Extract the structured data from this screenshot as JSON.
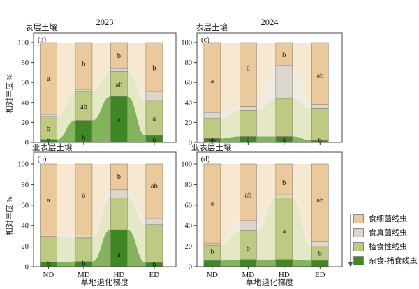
{
  "headers": {
    "year_left": "2023",
    "year_right": "2024",
    "soil_top_left": "表层土壤",
    "soil_top_right": "表层土壤",
    "soil_bottom_left": "亚表层土壤",
    "soil_bottom_right": "亚表层土壤"
  },
  "axes": {
    "ylabel": "相对丰度 %",
    "xlabel_left": "草地退化梯度",
    "xlabel_right": "草地退化梯度"
  },
  "chart_data": {
    "type": "bar",
    "stacked": true,
    "unit": "%",
    "categories": [
      "ND",
      "MD",
      "HD",
      "ED"
    ],
    "series_names": [
      "杂食-捕食线虫",
      "植食性线虫",
      "食真菌线虫",
      "食细菌线虫"
    ],
    "ylim": [
      0,
      100
    ],
    "y_ticks": [
      0,
      20,
      40,
      60,
      80,
      100
    ],
    "grid": false,
    "background_style": "smoothed stacked area tint behind bars",
    "panels": [
      {
        "id": "a",
        "tag": "(a)",
        "row": "表层土壤",
        "col": "2023",
        "stacks": [
          [
            3,
            23,
            2,
            72
          ],
          [
            22,
            29,
            2,
            47
          ],
          [
            46,
            25,
            3,
            26
          ],
          [
            7,
            35,
            9,
            49
          ]
        ],
        "letters": [
          {
            "bar": 0,
            "text": "b",
            "y": 2.5
          },
          {
            "bar": 0,
            "text": "b",
            "y": 14.5
          },
          {
            "bar": 0,
            "text": "a",
            "y": 64
          },
          {
            "bar": 1,
            "text": "b",
            "y": 5
          },
          {
            "bar": 1,
            "text": "ab",
            "y": 36
          },
          {
            "bar": 1,
            "text": "b",
            "y": 79
          },
          {
            "bar": 2,
            "text": "a",
            "y": 23
          },
          {
            "bar": 2,
            "text": "ab",
            "y": 58
          },
          {
            "bar": 2,
            "text": "b",
            "y": 87
          },
          {
            "bar": 3,
            "text": "b",
            "y": 2.5
          },
          {
            "bar": 3,
            "text": "a",
            "y": 24
          },
          {
            "bar": 3,
            "text": "b",
            "y": 75
          }
        ]
      },
      {
        "id": "b",
        "tag": "(b)",
        "row": "亚表层土壤",
        "col": "2023",
        "stacks": [
          [
            4.5,
            25,
            1.5,
            69
          ],
          [
            5,
            23,
            3,
            69
          ],
          [
            36,
            31,
            8,
            25
          ],
          [
            4,
            37,
            6,
            53
          ]
        ],
        "letters": [
          {
            "bar": 0,
            "text": "b",
            "y": 3
          },
          {
            "bar": 0,
            "text": "a",
            "y": 65
          },
          {
            "bar": 1,
            "text": "b",
            "y": 3.5
          },
          {
            "bar": 1,
            "text": "a",
            "y": 70
          },
          {
            "bar": 2,
            "text": "a",
            "y": 12
          },
          {
            "bar": 2,
            "text": "b",
            "y": 88
          },
          {
            "bar": 3,
            "text": "b",
            "y": 2.5
          },
          {
            "bar": 3,
            "text": "ab",
            "y": 79
          }
        ]
      },
      {
        "id": "c",
        "tag": "(c)",
        "row": "表层土壤",
        "col": "2024",
        "stacks": [
          [
            4,
            20,
            6,
            70
          ],
          [
            6,
            26,
            4,
            64
          ],
          [
            6,
            38,
            33,
            23
          ],
          [
            2,
            32,
            4,
            62
          ]
        ],
        "letters": [
          {
            "bar": 0,
            "text": "ab",
            "y": 2.5
          },
          {
            "bar": 0,
            "text": "a",
            "y": 62
          },
          {
            "bar": 1,
            "text": "a",
            "y": 3
          },
          {
            "bar": 1,
            "text": "a",
            "y": 75
          },
          {
            "bar": 2,
            "text": "a",
            "y": 3
          },
          {
            "bar": 2,
            "text": "b",
            "y": 88
          },
          {
            "bar": 3,
            "text": "b",
            "y": 2
          },
          {
            "bar": 3,
            "text": "ab",
            "y": 67
          }
        ]
      },
      {
        "id": "d",
        "tag": "(d)",
        "row": "亚表层土壤",
        "col": "2024",
        "stacks": [
          [
            6,
            15,
            2,
            77
          ],
          [
            7,
            28,
            10,
            55
          ],
          [
            7,
            60,
            3,
            30
          ],
          [
            6,
            14,
            5,
            75
          ]
        ],
        "letters": [
          {
            "bar": 0,
            "text": "b",
            "y": 15
          },
          {
            "bar": 0,
            "text": "a",
            "y": 62
          },
          {
            "bar": 1,
            "text": "b",
            "y": 18
          },
          {
            "bar": 1,
            "text": "ab",
            "y": 70
          },
          {
            "bar": 2,
            "text": "a",
            "y": 35
          },
          {
            "bar": 2,
            "text": "b",
            "y": 82
          },
          {
            "bar": 3,
            "text": "b",
            "y": 13
          },
          {
            "bar": 3,
            "text": "ab",
            "y": 65
          }
        ]
      }
    ]
  },
  "legend": {
    "items": [
      {
        "label": "食细菌线虫",
        "color": "#eac99c"
      },
      {
        "label": "食真菌线虫",
        "color": "#dcd6cc"
      },
      {
        "label": "植食性线虫",
        "color": "#bec983"
      },
      {
        "label": "杂食-捕食线虫",
        "color": "#3f8724"
      }
    ],
    "arrow_direction": "down"
  },
  "colors": {
    "bar_bottom_to_top": [
      "#3f8724",
      "#bec983",
      "#dcd6cc",
      "#eac99c"
    ],
    "tint_bottom_to_top": [
      "#84b35e",
      "#e5e8c5",
      "#efece5",
      "#f6e8d1"
    ],
    "segment_stroke": "#8f8474",
    "box_stroke": "#4a4a4a",
    "letter_color": "#1a1a1a",
    "arrow_color": "#5a5a5a"
  }
}
